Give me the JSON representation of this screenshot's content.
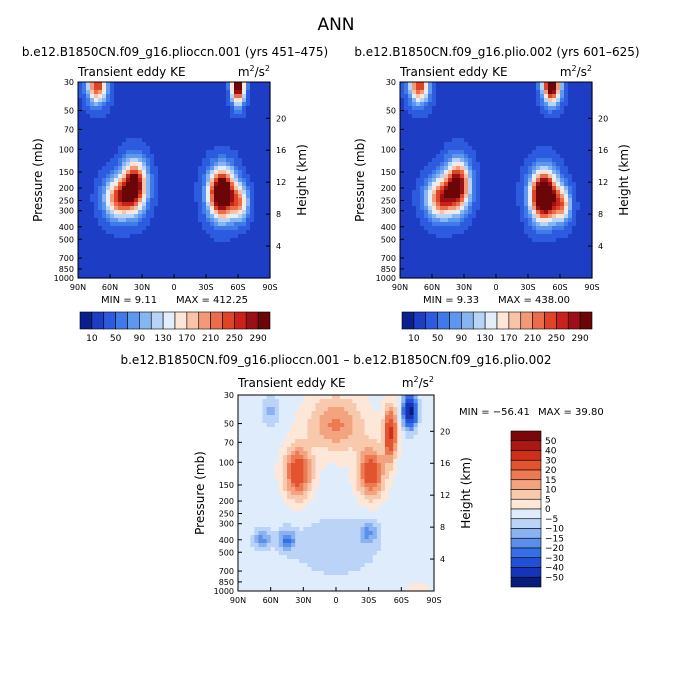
{
  "figure_title": "ANN",
  "colors": {
    "seq_scale": [
      "#0b1f8c",
      "#1c3dc4",
      "#2d5be0",
      "#3f7ae8",
      "#5e97ee",
      "#86b5f2",
      "#b7d3f6",
      "#e3eefb",
      "#fde6d8",
      "#f8c3a6",
      "#f29a77",
      "#ea6c4b",
      "#de4426",
      "#c8221a",
      "#9c1015",
      "#6a0608"
    ],
    "div_scale": [
      "#081d7a",
      "#1435b8",
      "#2150d6",
      "#356ee5",
      "#5b8fec",
      "#8ab2f2",
      "#bad3f7",
      "#dfecfb",
      "#fde7d9",
      "#f9c9ad",
      "#f3a37f",
      "#ec7a52",
      "#e2532f",
      "#cf2f18",
      "#a91812",
      "#7a0808"
    ]
  },
  "chart_data": [
    {
      "type": "contour",
      "case": "b.e12.B1850CN.f09_g16.plioccn.001 (yrs 451–475)",
      "variable": "Transient eddy KE",
      "units_base": "m",
      "units_exp1": "2",
      "units_mid": "/s",
      "units_exp2": "2",
      "ylabel": "Pressure (mb)",
      "ylabel_right": "Height (km)",
      "x_ticks": [
        "90N",
        "60N",
        "30N",
        "0",
        "30S",
        "60S",
        "90S"
      ],
      "p_ticks": [
        "30",
        "50",
        "70",
        "100",
        "150",
        "200",
        "250",
        "300",
        "400",
        "500",
        "700",
        "850",
        "1000"
      ],
      "p_values": [
        30,
        50,
        70,
        100,
        150,
        200,
        250,
        300,
        400,
        500,
        700,
        850,
        1000
      ],
      "height_ticks": [
        "4",
        "8",
        "12",
        "16",
        "20"
      ],
      "height_values": [
        4,
        8,
        12,
        16,
        20
      ],
      "min_text": "MIN = 9.11",
      "max_text": "MAX = 412.25",
      "colorbar_labels": [
        "10",
        "50",
        "90",
        "130",
        "170",
        "210",
        "250",
        "290"
      ],
      "features": [
        {
          "lat": 37,
          "p": 190,
          "amp": 300,
          "w": 11,
          "h": 0.42
        },
        {
          "lat": 52,
          "p": 240,
          "amp": 210,
          "w": 13,
          "h": 0.35
        },
        {
          "lat": -45,
          "p": 220,
          "amp": 380,
          "w": 12,
          "h": 0.42
        },
        {
          "lat": -62,
          "p": 260,
          "amp": 150,
          "w": 8,
          "h": 0.3
        },
        {
          "lat": 72,
          "p": 32,
          "amp": 230,
          "w": 9,
          "h": 0.3
        },
        {
          "lat": -60,
          "p": 32,
          "amp": 330,
          "w": 6,
          "h": 0.3
        }
      ]
    },
    {
      "type": "contour",
      "case": "b.e12.B1850CN.f09_g16.plio.002 (yrs 601–625)",
      "variable": "Transient eddy KE",
      "units_base": "m",
      "units_exp1": "2",
      "units_mid": "/s",
      "units_exp2": "2",
      "ylabel": "Pressure (mb)",
      "ylabel_right": "Height (km)",
      "x_ticks": [
        "90N",
        "60N",
        "30N",
        "0",
        "30S",
        "60S",
        "90S"
      ],
      "p_ticks": [
        "30",
        "50",
        "70",
        "100",
        "150",
        "200",
        "250",
        "300",
        "400",
        "500",
        "700",
        "850",
        "1000"
      ],
      "p_values": [
        30,
        50,
        70,
        100,
        150,
        200,
        250,
        300,
        400,
        500,
        700,
        850,
        1000
      ],
      "height_ticks": [
        "4",
        "8",
        "12",
        "16",
        "20"
      ],
      "height_values": [
        4,
        8,
        12,
        16,
        20
      ],
      "min_text": "MIN = 9.33",
      "max_text": "MAX = 438.00",
      "colorbar_labels": [
        "10",
        "50",
        "90",
        "130",
        "170",
        "210",
        "250",
        "290"
      ],
      "features": [
        {
          "lat": 36,
          "p": 190,
          "amp": 290,
          "w": 11,
          "h": 0.42
        },
        {
          "lat": 52,
          "p": 240,
          "amp": 220,
          "w": 13,
          "h": 0.35
        },
        {
          "lat": -45,
          "p": 230,
          "amp": 400,
          "w": 12,
          "h": 0.42
        },
        {
          "lat": -62,
          "p": 270,
          "amp": 160,
          "w": 8,
          "h": 0.3
        },
        {
          "lat": 72,
          "p": 32,
          "amp": 230,
          "w": 9,
          "h": 0.3
        },
        {
          "lat": -52,
          "p": 32,
          "amp": 320,
          "w": 8,
          "h": 0.3
        }
      ]
    },
    {
      "type": "contour",
      "case": "b.e12.B1850CN.f09_g16.plioccn.001 – b.e12.B1850CN.f09_g16.plio.002",
      "variable": "Transient eddy KE",
      "units_base": "m",
      "units_exp1": "2",
      "units_mid": "/s",
      "units_exp2": "2",
      "ylabel": "Pressure (mb)",
      "ylabel_right": "Height (km)",
      "x_ticks": [
        "90N",
        "60N",
        "30N",
        "0",
        "30S",
        "60S",
        "90S"
      ],
      "p_ticks": [
        "30",
        "50",
        "70",
        "100",
        "150",
        "200",
        "250",
        "300",
        "400",
        "500",
        "700",
        "850",
        "1000"
      ],
      "p_values": [
        30,
        50,
        70,
        100,
        150,
        200,
        250,
        300,
        400,
        500,
        700,
        850,
        1000
      ],
      "height_ticks": [
        "4",
        "8",
        "12",
        "16",
        "20"
      ],
      "height_values": [
        4,
        8,
        12,
        16,
        20
      ],
      "min_text": "MIN = −56.41",
      "max_text": "MAX =  39.80",
      "colorbar_labels": [
        "50",
        "40",
        "30",
        "20",
        "15",
        "10",
        "5",
        "0",
        "−5",
        "−10",
        "−15",
        "−20",
        "−30",
        "−40",
        "−50"
      ],
      "features": [
        {
          "lat": 35,
          "p": 120,
          "amp": 30,
          "w": 12,
          "h": 0.45
        },
        {
          "lat": 0,
          "p": 50,
          "amp": 18,
          "w": 25,
          "h": 0.5
        },
        {
          "lat": -32,
          "p": 120,
          "amp": 28,
          "w": 12,
          "h": 0.45
        },
        {
          "lat": -50,
          "p": 60,
          "amp": 34,
          "w": 6,
          "h": 0.45
        },
        {
          "lat": -68,
          "p": 40,
          "amp": -56,
          "w": 6,
          "h": 0.28
        },
        {
          "lat": 60,
          "p": 40,
          "amp": -10,
          "w": 8,
          "h": 0.25
        },
        {
          "lat": 45,
          "p": 400,
          "amp": -18,
          "w": 8,
          "h": 0.18
        },
        {
          "lat": 68,
          "p": 400,
          "amp": -14,
          "w": 8,
          "h": 0.18
        },
        {
          "lat": -30,
          "p": 350,
          "amp": -12,
          "w": 8,
          "h": 0.2
        },
        {
          "lat": 0,
          "p": 450,
          "amp": -6,
          "w": 45,
          "h": 0.6
        },
        {
          "lat": -75,
          "p": 1000,
          "amp": 6,
          "w": 12,
          "h": 0.12
        }
      ]
    }
  ]
}
